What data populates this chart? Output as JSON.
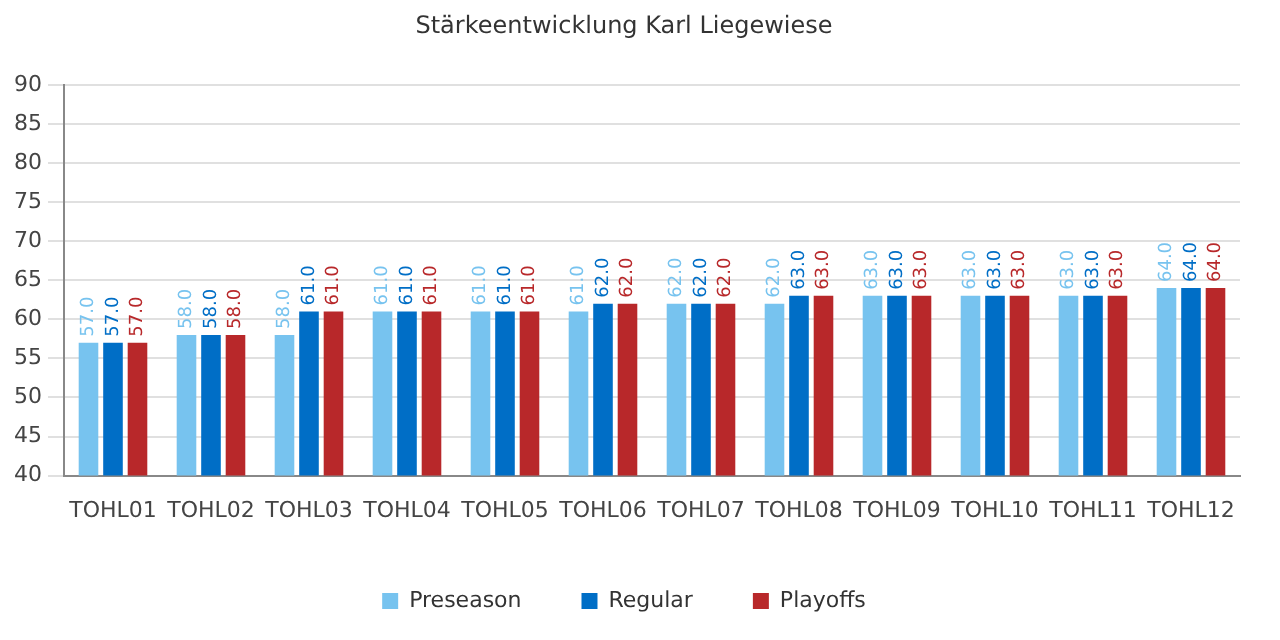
{
  "chart_data": {
    "type": "bar",
    "title": "Stärkeentwicklung Karl Liegewiese",
    "categories": [
      "TOHL01",
      "TOHL02",
      "TOHL03",
      "TOHL04",
      "TOHL05",
      "TOHL06",
      "TOHL07",
      "TOHL08",
      "TOHL09",
      "TOHL10",
      "TOHL11",
      "TOHL12"
    ],
    "series": [
      {
        "name": "Preseason",
        "color": "#77c3ef",
        "values": [
          57,
          58,
          58,
          61,
          61,
          61,
          62,
          62,
          63,
          63,
          63,
          64
        ],
        "value_labels": [
          "57.0",
          "58.0",
          "58.0",
          "61.0",
          "61.0",
          "61.0",
          "62.0",
          "62.0",
          "63.0",
          "63.0",
          "63.0",
          "64.0"
        ]
      },
      {
        "name": "Regular",
        "color": "#006ec6",
        "values": [
          57,
          58,
          61,
          61,
          61,
          62,
          62,
          63,
          63,
          63,
          63,
          64
        ],
        "value_labels": [
          "57.0",
          "58.0",
          "61.0",
          "61.0",
          "61.0",
          "62.0",
          "62.0",
          "63.0",
          "63.0",
          "63.0",
          "63.0",
          "64.0"
        ]
      },
      {
        "name": "Playoffs",
        "color": "#b8282a",
        "values": [
          57,
          58,
          61,
          61,
          61,
          62,
          62,
          63,
          63,
          63,
          63,
          64
        ],
        "value_labels": [
          "57.0",
          "58.0",
          "61.0",
          "61.0",
          "61.0",
          "62.0",
          "62.0",
          "63.0",
          "63.0",
          "63.0",
          "63.0",
          "64.0"
        ]
      }
    ],
    "ylim": [
      40,
      90
    ],
    "yticks": [
      40,
      45,
      50,
      55,
      60,
      65,
      70,
      75,
      80,
      85,
      90
    ],
    "grid": "y",
    "legend": "bottom"
  }
}
